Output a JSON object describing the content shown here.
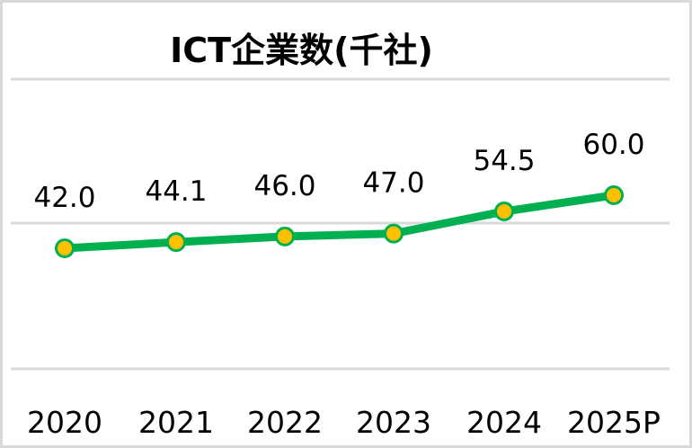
{
  "chart_data": {
    "type": "line",
    "title": "ICT企業数(千社)",
    "categories": [
      "2020",
      "2021",
      "2022",
      "2023",
      "2024",
      "2025P"
    ],
    "series": [
      {
        "name": "ICT企業数(千社)",
        "values": [
          42.0,
          44.1,
          46.0,
          47.0,
          54.5,
          60.0
        ]
      }
    ],
    "data_labels": [
      "42.0",
      "44.1",
      "46.0",
      "47.0",
      "54.5",
      "60.0"
    ],
    "xlabel": "",
    "ylabel": "",
    "grid": true,
    "legend": "none",
    "colors": {
      "line": "#00b050",
      "marker_fill": "#ffc000",
      "marker_edge": "#00b050",
      "grid": "#d9d9d9"
    }
  }
}
